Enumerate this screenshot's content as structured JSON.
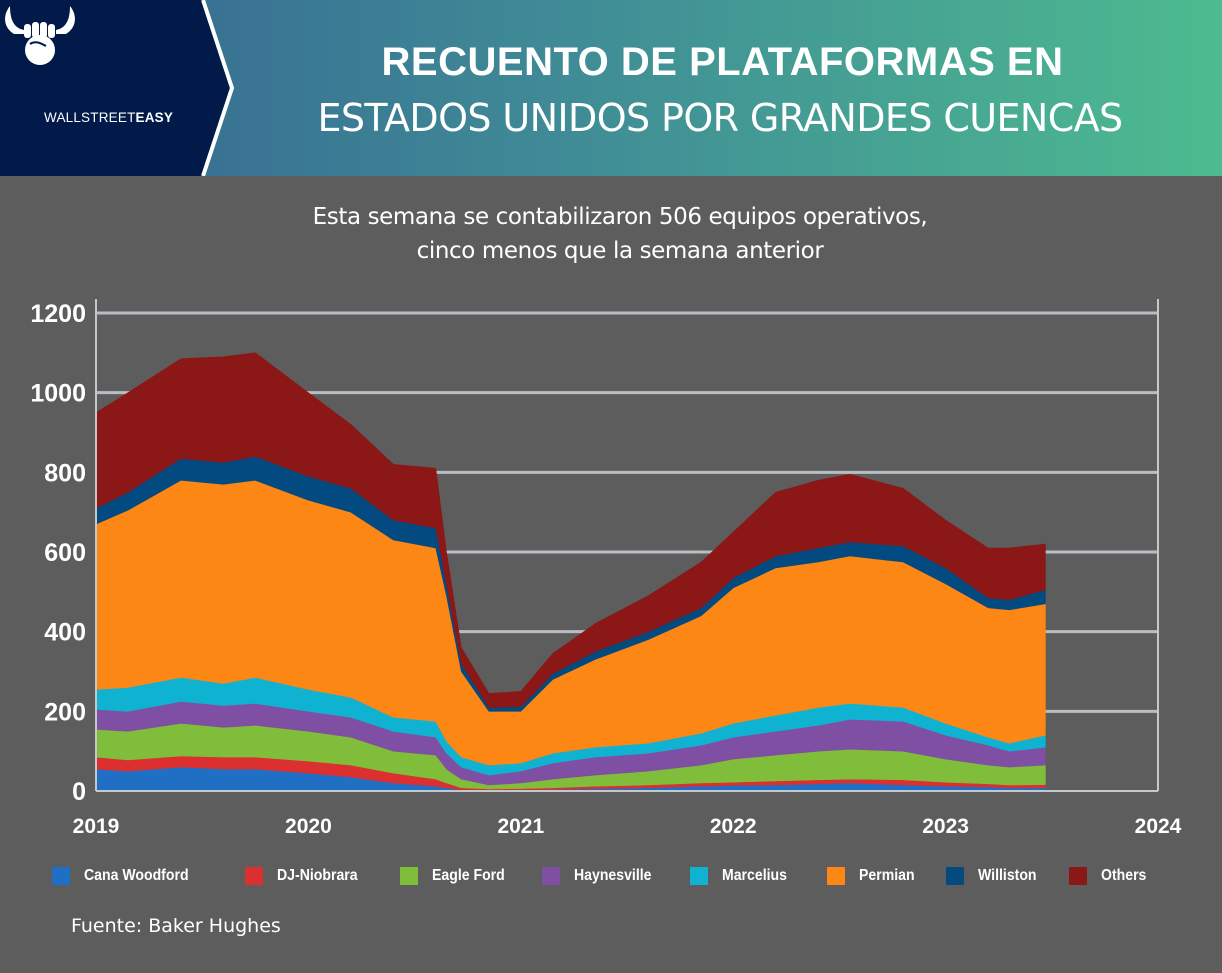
{
  "header": {
    "brand": {
      "name_light": "WALLSTREET",
      "name_bold": "EASY",
      "logo": "bull-horns-fist-icon"
    },
    "title_line1": "RECUENTO DE PLATAFORMAS EN",
    "title_line2": "ESTADOS UNIDOS POR GRANDES CUENCAS",
    "colors": {
      "logo_panel": "#021a4a",
      "gradient_start": "#356491",
      "gradient_end": "#4dbb8f"
    }
  },
  "subtitle": {
    "line1": "Esta semana se contabilizaron 506 equipos operativos,",
    "line2": "cinco menos que la semana anterior"
  },
  "source": "Fuente: Baker Hughes",
  "chart_data": {
    "type": "area",
    "stacked": true,
    "title": "Recuento de plataformas en Estados Unidos por grandes cuencas",
    "xlabel": "",
    "ylabel": "",
    "xlim": [
      2019,
      2024
    ],
    "ylim": [
      0,
      1200
    ],
    "grid": true,
    "legend_position": "bottom",
    "x_ticks": [
      "2019",
      "2020",
      "2021",
      "2022",
      "2023",
      "2024"
    ],
    "y_ticks": [
      "0",
      "200",
      "400",
      "600",
      "800",
      "1000",
      "1200"
    ],
    "x": [
      2019.0,
      2019.15,
      2019.4,
      2019.6,
      2019.75,
      2020.0,
      2020.2,
      2020.4,
      2020.6,
      2020.65,
      2020.72,
      2020.85,
      2021.0,
      2021.15,
      2021.35,
      2021.6,
      2021.85,
      2022.0,
      2022.2,
      2022.4,
      2022.55,
      2022.8,
      2023.0,
      2023.2,
      2023.3,
      2023.47
    ],
    "series": [
      {
        "name": "Cana Woodford",
        "color": "#1f6fc4",
        "values": [
          55,
          50,
          60,
          55,
          55,
          45,
          35,
          20,
          12,
          8,
          3,
          2,
          2,
          4,
          6,
          8,
          12,
          14,
          15,
          18,
          20,
          15,
          12,
          10,
          8,
          8
        ]
      },
      {
        "name": "DJ-Niobrara",
        "color": "#dc2f2f",
        "values": [
          30,
          28,
          28,
          30,
          30,
          30,
          30,
          25,
          18,
          12,
          5,
          3,
          4,
          4,
          6,
          7,
          8,
          8,
          10,
          10,
          10,
          13,
          10,
          8,
          7,
          8
        ]
      },
      {
        "name": "Eagle Ford",
        "color": "#80bd3a",
        "values": [
          70,
          72,
          82,
          75,
          80,
          75,
          70,
          55,
          60,
          35,
          22,
          10,
          14,
          22,
          28,
          35,
          45,
          58,
          65,
          72,
          75,
          72,
          58,
          47,
          45,
          49
        ]
      },
      {
        "name": "Haynesville",
        "color": "#7e4fa2",
        "values": [
          50,
          50,
          55,
          55,
          55,
          50,
          50,
          50,
          45,
          40,
          30,
          25,
          30,
          40,
          45,
          45,
          50,
          55,
          60,
          65,
          75,
          75,
          60,
          50,
          40,
          45
        ]
      },
      {
        "name": "Marcelius",
        "color": "#10b2d2",
        "values": [
          50,
          60,
          60,
          55,
          65,
          55,
          50,
          35,
          40,
          30,
          25,
          25,
          20,
          25,
          25,
          25,
          30,
          35,
          40,
          45,
          40,
          35,
          30,
          20,
          20,
          30
        ]
      },
      {
        "name": "Permian",
        "color": "#fc8714",
        "values": [
          415,
          445,
          495,
          500,
          495,
          475,
          465,
          445,
          435,
          365,
          215,
          135,
          130,
          185,
          220,
          260,
          295,
          340,
          370,
          365,
          370,
          365,
          350,
          325,
          335,
          330
        ]
      },
      {
        "name": "Williston",
        "color": "#034a80",
        "values": [
          40,
          45,
          55,
          55,
          60,
          60,
          60,
          50,
          50,
          30,
          20,
          10,
          12,
          15,
          20,
          20,
          20,
          25,
          30,
          35,
          35,
          40,
          40,
          25,
          25,
          35
        ]
      },
      {
        "name": "Others",
        "color": "#8c1717",
        "values": [
          240,
          250,
          250,
          265,
          260,
          210,
          160,
          140,
          150,
          80,
          40,
          35,
          38,
          50,
          70,
          90,
          115,
          115,
          160,
          170,
          170,
          145,
          120,
          125,
          130,
          115
        ]
      }
    ]
  }
}
